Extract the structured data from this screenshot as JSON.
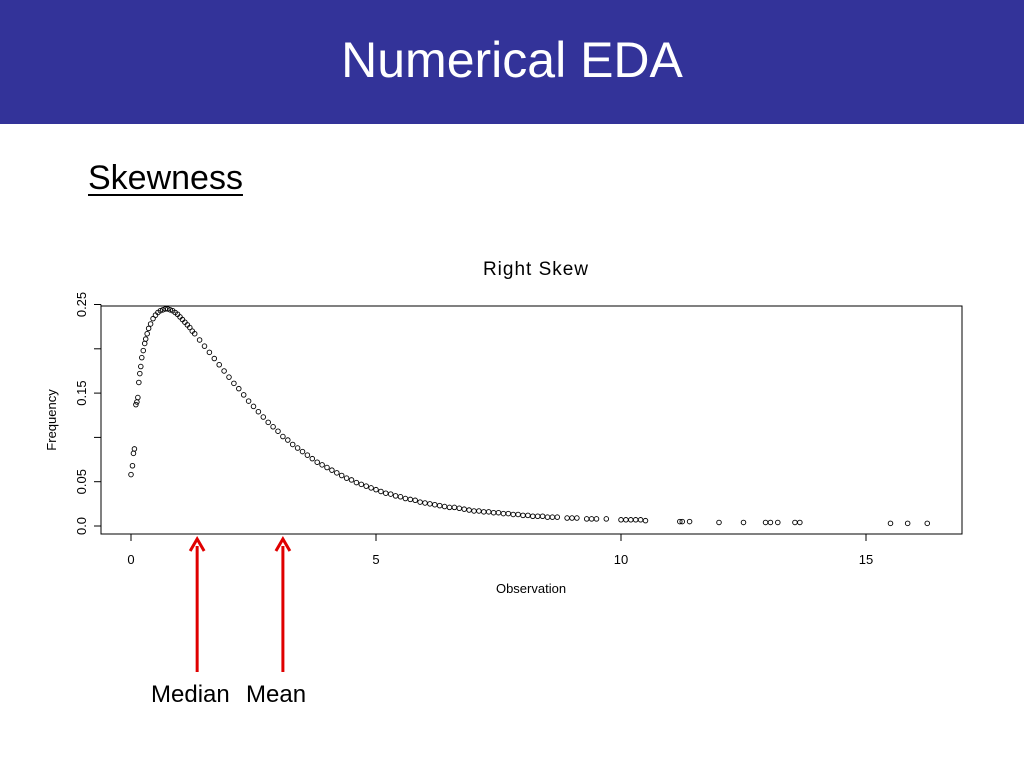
{
  "slide": {
    "title": "Numerical EDA",
    "heading": "Skewness",
    "colors": {
      "title_bar": "#333399",
      "title_text": "#ffffff",
      "arrow": "#e00000"
    }
  },
  "chart_data": {
    "type": "scatter",
    "title": "Right Skew",
    "xlabel": "Observation",
    "ylabel": "Frequency",
    "xlim": [
      0,
      16.3
    ],
    "ylim": [
      0,
      0.25
    ],
    "x_ticks": [
      0,
      5,
      10,
      15
    ],
    "x_tick_labels": [
      "0",
      "5",
      "10",
      "15"
    ],
    "y_ticks": [
      0.0,
      0.05,
      0.1,
      0.15,
      0.2,
      0.25
    ],
    "y_tick_labels": [
      "0.0",
      "0.05",
      "",
      "0.15",
      "",
      "0.25"
    ],
    "series": [
      {
        "marker": "open-circle",
        "x": [
          0.0,
          0.03,
          0.05,
          0.07,
          0.1,
          0.12,
          0.14,
          0.16,
          0.18,
          0.2,
          0.22,
          0.25,
          0.28,
          0.3,
          0.33,
          0.36,
          0.4,
          0.45,
          0.5,
          0.55,
          0.6,
          0.65,
          0.7,
          0.75,
          0.8,
          0.85,
          0.9,
          0.95,
          1.0,
          1.05,
          1.1,
          1.15,
          1.2,
          1.25,
          1.3,
          1.4,
          1.5,
          1.6,
          1.7,
          1.8,
          1.9,
          2.0,
          2.1,
          2.2,
          2.3,
          2.4,
          2.5,
          2.6,
          2.7,
          2.8,
          2.9,
          3.0,
          3.1,
          3.2,
          3.3,
          3.4,
          3.5,
          3.6,
          3.7,
          3.8,
          3.9,
          4.0,
          4.1,
          4.2,
          4.3,
          4.4,
          4.5,
          4.6,
          4.7,
          4.8,
          4.9,
          5.0,
          5.1,
          5.2,
          5.3,
          5.4,
          5.5,
          5.6,
          5.7,
          5.8,
          5.9,
          6.0,
          6.1,
          6.2,
          6.3,
          6.4,
          6.5,
          6.6,
          6.7,
          6.8,
          6.9,
          7.0,
          7.1,
          7.2,
          7.3,
          7.4,
          7.5,
          7.6,
          7.7,
          7.8,
          7.9,
          8.0,
          8.1,
          8.2,
          8.3,
          8.4,
          8.5,
          8.6,
          8.7,
          8.9,
          9.0,
          9.1,
          9.3,
          9.4,
          9.5,
          9.7,
          10.0,
          10.1,
          10.2,
          10.3,
          10.4,
          10.5,
          11.2,
          11.25,
          11.4,
          12.0,
          12.5,
          12.95,
          13.05,
          13.2,
          13.55,
          13.65,
          15.5,
          15.85,
          16.25
        ],
        "y": [
          0.058,
          0.068,
          0.082,
          0.087,
          0.137,
          0.14,
          0.145,
          0.162,
          0.172,
          0.18,
          0.19,
          0.198,
          0.206,
          0.211,
          0.217,
          0.223,
          0.228,
          0.234,
          0.238,
          0.241,
          0.243,
          0.244,
          0.245,
          0.245,
          0.244,
          0.243,
          0.241,
          0.239,
          0.236,
          0.233,
          0.23,
          0.227,
          0.224,
          0.22,
          0.217,
          0.21,
          0.203,
          0.196,
          0.189,
          0.182,
          0.175,
          0.168,
          0.161,
          0.155,
          0.148,
          0.141,
          0.135,
          0.129,
          0.123,
          0.117,
          0.112,
          0.107,
          0.101,
          0.097,
          0.092,
          0.088,
          0.084,
          0.08,
          0.076,
          0.072,
          0.069,
          0.066,
          0.063,
          0.06,
          0.057,
          0.054,
          0.052,
          0.049,
          0.047,
          0.045,
          0.043,
          0.041,
          0.039,
          0.037,
          0.036,
          0.034,
          0.033,
          0.031,
          0.03,
          0.029,
          0.027,
          0.026,
          0.025,
          0.024,
          0.023,
          0.022,
          0.021,
          0.021,
          0.02,
          0.019,
          0.018,
          0.017,
          0.017,
          0.016,
          0.016,
          0.015,
          0.015,
          0.014,
          0.014,
          0.013,
          0.013,
          0.012,
          0.012,
          0.011,
          0.011,
          0.011,
          0.01,
          0.01,
          0.01,
          0.009,
          0.009,
          0.009,
          0.008,
          0.008,
          0.008,
          0.008,
          0.007,
          0.007,
          0.007,
          0.007,
          0.007,
          0.006,
          0.005,
          0.005,
          0.005,
          0.004,
          0.004,
          0.004,
          0.004,
          0.004,
          0.004,
          0.004,
          0.003,
          0.003,
          0.003
        ]
      }
    ],
    "annotations": [
      {
        "label": "Median",
        "x": 1.35
      },
      {
        "label": "Mean",
        "x": 3.1
      }
    ],
    "grid": false,
    "legend": "none"
  }
}
